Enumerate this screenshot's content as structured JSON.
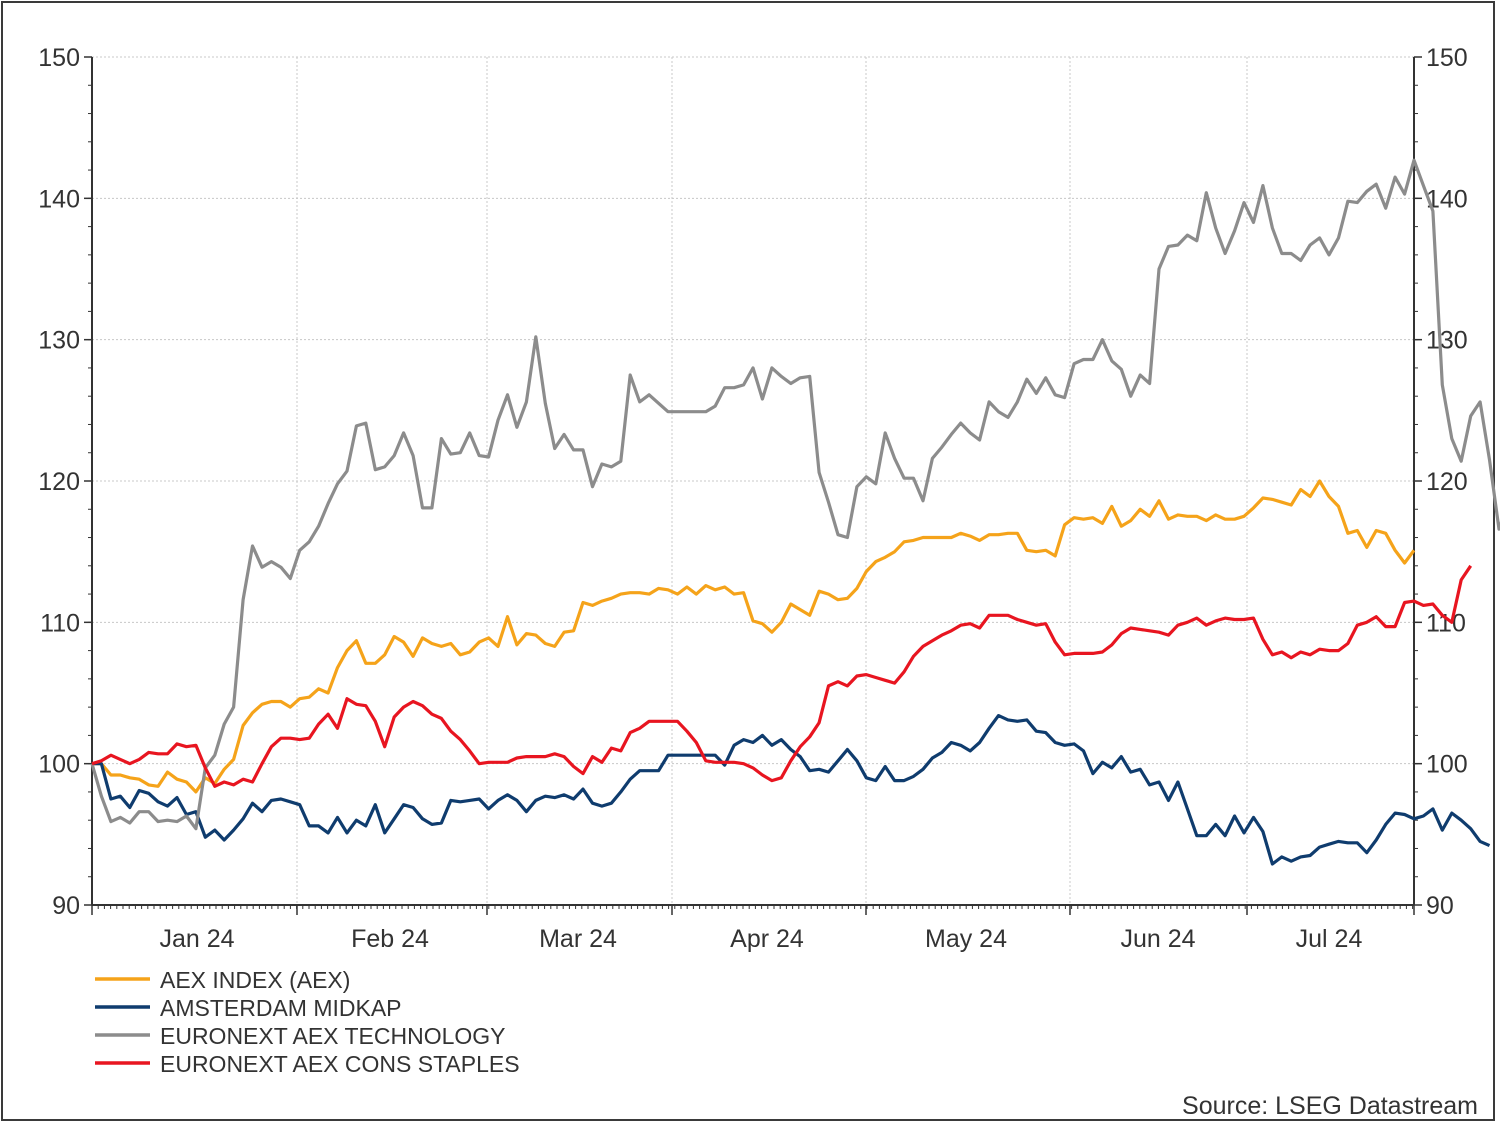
{
  "chart_data": {
    "type": "line",
    "x_axis": {
      "tick_labels": [
        "Jan 24",
        "Feb 24",
        "Mar 24",
        "Apr 24",
        "May 24",
        "Jun 24",
        "Jul 24"
      ]
    },
    "y_axis": {
      "range": [
        90,
        150
      ],
      "ticks": [
        90,
        100,
        110,
        120,
        130,
        140,
        150
      ],
      "tick_labels": [
        "90",
        "100",
        "110",
        "120",
        "130",
        "140",
        "150"
      ],
      "mirrored_right": true
    },
    "grid": true,
    "legend_position": "bottom-left",
    "series": [
      {
        "name": "AEX INDEX (AEX)",
        "color": "#f5a31a",
        "values": [
          100,
          100,
          99.2,
          99.2,
          99,
          98.9,
          98.5,
          98.4,
          99.4,
          98.9,
          98.7,
          98,
          99,
          98.6,
          99.6,
          100.3,
          102.7,
          103.6,
          104.2,
          104.4,
          104.4,
          104,
          104.6,
          104.7,
          105.3,
          105,
          106.8,
          108,
          108.7,
          107.1,
          107.1,
          107.7,
          109,
          108.6,
          107.6,
          108.9,
          108.5,
          108.3,
          108.5,
          107.7,
          107.9,
          108.6,
          108.9,
          108.3,
          110.4,
          108.4,
          109.2,
          109.1,
          108.5,
          108.3,
          109.3,
          109.4,
          111.4,
          111.2,
          111.5,
          111.7,
          112,
          112.1,
          112.1,
          112,
          112.4,
          112.3,
          112,
          112.5,
          112,
          112.6,
          112.3,
          112.5,
          112,
          112.1,
          110.1,
          109.9,
          109.3,
          110,
          111.3,
          110.9,
          110.5,
          112.2,
          112,
          111.6,
          111.7,
          112.4,
          113.6,
          114.3,
          114.6,
          115,
          115.7,
          115.8,
          116,
          116,
          116,
          116,
          116.3,
          116.1,
          115.8,
          116.2,
          116.2,
          116.3,
          116.3,
          115.1,
          115,
          115.1,
          114.7,
          116.9,
          117.4,
          117.3,
          117.4,
          117,
          118.2,
          116.8,
          117.2,
          118,
          117.5,
          118.6,
          117.3,
          117.6,
          117.5,
          117.5,
          117.2,
          117.6,
          117.3,
          117.3,
          117.5,
          118.1,
          118.8,
          118.7,
          118.5,
          118.3,
          119.4,
          118.9,
          120,
          118.9,
          118.2,
          116.3,
          116.5,
          115.3,
          116.5,
          116.3,
          115.1,
          114.2,
          115.1
        ]
      },
      {
        "name": "AMSTERDAM MIDKAP",
        "color": "#0f3c6e",
        "values": [
          100,
          100,
          97.5,
          97.7,
          96.9,
          98.1,
          97.9,
          97.3,
          97,
          97.6,
          96.4,
          96.6,
          94.8,
          95.3,
          94.6,
          95.3,
          96.1,
          97.2,
          96.6,
          97.4,
          97.5,
          97.3,
          97.1,
          95.6,
          95.6,
          95.1,
          96.2,
          95.1,
          96,
          95.6,
          97.1,
          95.1,
          96.1,
          97.1,
          96.9,
          96.1,
          95.7,
          95.8,
          97.4,
          97.3,
          97.4,
          97.5,
          96.8,
          97.4,
          97.8,
          97.4,
          96.6,
          97.4,
          97.7,
          97.6,
          97.8,
          97.5,
          98.2,
          97.2,
          97,
          97.2,
          98,
          98.9,
          99.5,
          99.5,
          99.5,
          100.6,
          100.6,
          100.6,
          100.6,
          100.6,
          100.6,
          99.9,
          101.3,
          101.7,
          101.5,
          102,
          101.3,
          101.7,
          101,
          100.5,
          99.5,
          99.6,
          99.4,
          100.2,
          101,
          100.2,
          99,
          98.8,
          99.8,
          98.8,
          98.8,
          99.1,
          99.6,
          100.4,
          100.8,
          101.5,
          101.3,
          100.9,
          101.5,
          102.5,
          103.4,
          103.1,
          103,
          103.1,
          102.3,
          102.2,
          101.5,
          101.3,
          101.4,
          100.9,
          99.3,
          100.1,
          99.7,
          100.5,
          99.4,
          99.6,
          98.5,
          98.7,
          97.4,
          98.7,
          96.8,
          94.9,
          94.9,
          95.7,
          94.9,
          96.3,
          95.1,
          96.2,
          95.2,
          92.9,
          93.4,
          93.1,
          93.4,
          93.5,
          94.1,
          94.3,
          94.5,
          94.4,
          94.4,
          93.7,
          94.6,
          95.7,
          96.5,
          96.4,
          96.1,
          96.3,
          96.8,
          95.3,
          96.5,
          96,
          95.4,
          94.5,
          94.2
        ]
      },
      {
        "name": "EURONEXT AEX TECHNOLOGY",
        "color": "#8c8c8c",
        "values": [
          100,
          97.7,
          95.9,
          96.2,
          95.8,
          96.6,
          96.6,
          95.9,
          96,
          95.9,
          96.3,
          95.4,
          99.7,
          100.6,
          102.8,
          104,
          111.6,
          115.4,
          113.9,
          114.3,
          113.9,
          113.1,
          115.1,
          115.7,
          116.8,
          118.4,
          119.8,
          120.7,
          123.9,
          124.1,
          120.8,
          121,
          121.8,
          123.4,
          121.8,
          118.1,
          118.1,
          123,
          121.9,
          122,
          123.4,
          121.8,
          121.7,
          124.3,
          126.1,
          123.8,
          125.6,
          130.2,
          125.5,
          122.3,
          123.3,
          122.2,
          122.2,
          119.6,
          121.2,
          121,
          121.4,
          127.5,
          125.6,
          126.1,
          125.5,
          124.9,
          124.9,
          124.9,
          124.9,
          124.9,
          125.3,
          126.6,
          126.6,
          126.8,
          128,
          125.8,
          128,
          127.4,
          126.9,
          127.3,
          127.4,
          120.6,
          118.5,
          116.2,
          116,
          119.6,
          120.3,
          119.8,
          123.4,
          121.6,
          120.2,
          120.2,
          118.6,
          121.6,
          122.4,
          123.3,
          124.1,
          123.4,
          122.9,
          125.6,
          124.9,
          124.5,
          125.6,
          127.2,
          126.2,
          127.3,
          126.1,
          125.9,
          128.3,
          128.6,
          128.6,
          130,
          128.5,
          127.9,
          126,
          127.5,
          126.9,
          135,
          136.6,
          136.7,
          137.4,
          137,
          140.4,
          137.9,
          136.1,
          137.7,
          139.7,
          138.3,
          140.9,
          137.9,
          136.1,
          136.1,
          135.6,
          136.7,
          137.2,
          136,
          137.2,
          139.8,
          139.7,
          140.5,
          141,
          139.3,
          141.5,
          140.3,
          142.7,
          140.9,
          139.1,
          126.8,
          123,
          121.4,
          124.6,
          125.6,
          121.5,
          116.6,
          118.5
        ]
      },
      {
        "name": "EURONEXT AEX CONS STAPLES",
        "color": "#e81520",
        "values": [
          100,
          100.2,
          100.6,
          100.3,
          100,
          100.3,
          100.8,
          100.7,
          100.7,
          101.4,
          101.2,
          101.3,
          99.7,
          98.4,
          98.7,
          98.5,
          98.9,
          98.7,
          100,
          101.2,
          101.8,
          101.8,
          101.7,
          101.8,
          102.8,
          103.5,
          102.5,
          104.6,
          104.2,
          104.1,
          103,
          101.2,
          103.3,
          104,
          104.4,
          104.1,
          103.5,
          103.2,
          102.3,
          101.7,
          100.9,
          100,
          100.1,
          100.1,
          100.1,
          100.4,
          100.5,
          100.5,
          100.5,
          100.7,
          100.5,
          99.8,
          99.3,
          100.5,
          100.1,
          101.1,
          100.9,
          102.2,
          102.5,
          103,
          103,
          103,
          103,
          102.3,
          101.5,
          100.2,
          100.1,
          100.1,
          100.1,
          100,
          99.7,
          99.2,
          98.8,
          99,
          100.2,
          101.2,
          101.9,
          102.9,
          105.5,
          105.8,
          105.5,
          106.2,
          106.3,
          106.1,
          105.9,
          105.7,
          106.5,
          107.6,
          108.3,
          108.7,
          109.1,
          109.4,
          109.8,
          109.9,
          109.6,
          110.5,
          110.5,
          110.5,
          110.2,
          110,
          109.8,
          109.9,
          108.6,
          107.7,
          107.8,
          107.8,
          107.8,
          107.9,
          108.4,
          109.2,
          109.6,
          109.5,
          109.4,
          109.3,
          109.1,
          109.8,
          110,
          110.3,
          109.8,
          110.1,
          110.3,
          110.2,
          110.2,
          110.3,
          108.8,
          107.7,
          107.9,
          107.5,
          107.9,
          107.7,
          108.1,
          108,
          108,
          108.5,
          109.8,
          110,
          110.4,
          109.7,
          109.7,
          111.4,
          111.5,
          111.2,
          111.3,
          110.5,
          110,
          113,
          114
        ]
      }
    ]
  },
  "source_text": "Source: LSEG Datastream"
}
